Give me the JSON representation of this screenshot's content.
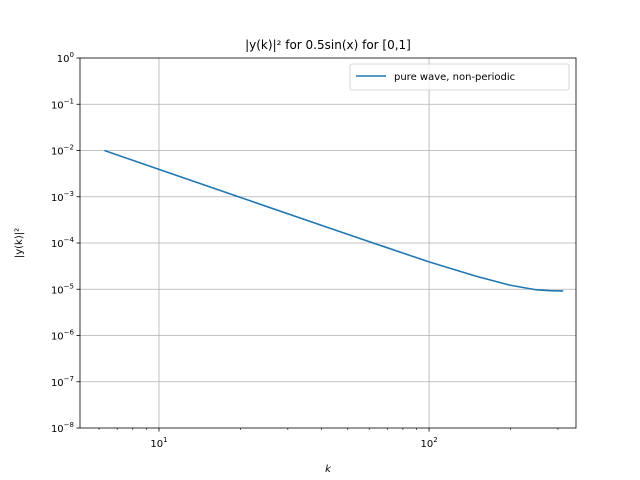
{
  "chart_data": {
    "type": "line",
    "title": "|y(k)|² for 0.5sin(x) for [0,1]",
    "xlabel": "k",
    "ylabel": "|y(k)|²",
    "xscale": "log",
    "yscale": "log",
    "xlim": [
      5.1,
      350
    ],
    "ylim": [
      1e-08,
      1
    ],
    "grid": true,
    "legend_position": "top-right",
    "x_ticks": [
      {
        "value": 10,
        "base": "10",
        "exp": "1"
      },
      {
        "value": 100,
        "base": "10",
        "exp": "2"
      }
    ],
    "y_ticks": [
      {
        "value": 1e-08,
        "base": "10",
        "exp": "−8"
      },
      {
        "value": 1e-07,
        "base": "10",
        "exp": "−7"
      },
      {
        "value": 1e-06,
        "base": "10",
        "exp": "−6"
      },
      {
        "value": 1e-05,
        "base": "10",
        "exp": "−5"
      },
      {
        "value": 0.0001,
        "base": "10",
        "exp": "−4"
      },
      {
        "value": 0.001,
        "base": "10",
        "exp": "−3"
      },
      {
        "value": 0.01,
        "base": "10",
        "exp": "−2"
      },
      {
        "value": 0.1,
        "base": "10",
        "exp": "−1"
      },
      {
        "value": 1,
        "base": "10",
        "exp": "0"
      }
    ],
    "series": [
      {
        "name": "pure wave, non-periodic",
        "color": "#1f77b4",
        "x": [
          6.28,
          10,
          20,
          40,
          60,
          100,
          150,
          200,
          250,
          280,
          314
        ],
        "y": [
          0.01,
          0.0039,
          0.00097,
          0.00024,
          0.000107,
          3.9e-05,
          1.9e-05,
          1.22e-05,
          9.7e-06,
          9.3e-06,
          9.2e-06
        ]
      }
    ]
  }
}
